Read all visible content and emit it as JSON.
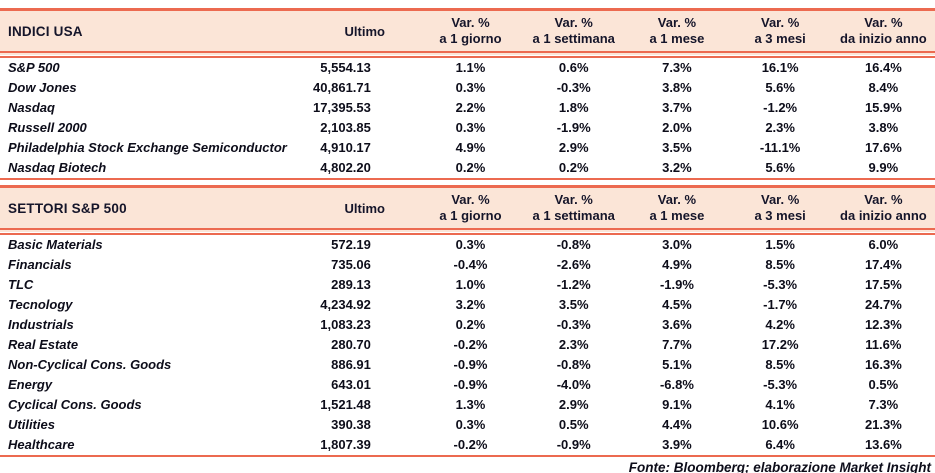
{
  "colors": {
    "header_bg": "#fbe5d7",
    "rule_line": "#ec6a50",
    "text": "#0d0d1a"
  },
  "columns": {
    "ultimo_label": "Ultimo",
    "var_label": "Var. %",
    "periods": [
      "a 1 giorno",
      "a 1 settimana",
      "a 1 mese",
      "a 3 mesi",
      "da inizio anno"
    ]
  },
  "tables": [
    {
      "title": "INDICI USA",
      "rows": [
        {
          "name": "S&P 500",
          "ultimo": "5,554.13",
          "vars": [
            "1.1%",
            "0.6%",
            "7.3%",
            "16.1%",
            "16.4%"
          ]
        },
        {
          "name": "Dow Jones",
          "ultimo": "40,861.71",
          "vars": [
            "0.3%",
            "-0.3%",
            "3.8%",
            "5.6%",
            "8.4%"
          ]
        },
        {
          "name": "Nasdaq",
          "ultimo": "17,395.53",
          "vars": [
            "2.2%",
            "1.8%",
            "3.7%",
            "-1.2%",
            "15.9%"
          ]
        },
        {
          "name": "Russell 2000",
          "ultimo": "2,103.85",
          "vars": [
            "0.3%",
            "-1.9%",
            "2.0%",
            "2.3%",
            "3.8%"
          ]
        },
        {
          "name": "Philadelphia Stock Exchange Semiconductor",
          "ultimo": "4,910.17",
          "vars": [
            "4.9%",
            "2.9%",
            "3.5%",
            "-11.1%",
            "17.6%"
          ]
        },
        {
          "name": "Nasdaq Biotech",
          "ultimo": "4,802.20",
          "vars": [
            "0.2%",
            "0.2%",
            "3.2%",
            "5.6%",
            "9.9%"
          ]
        }
      ]
    },
    {
      "title": "SETTORI S&P 500",
      "rows": [
        {
          "name": "Basic Materials",
          "ultimo": "572.19",
          "vars": [
            "0.3%",
            "-0.8%",
            "3.0%",
            "1.5%",
            "6.0%"
          ]
        },
        {
          "name": "Financials",
          "ultimo": "735.06",
          "vars": [
            "-0.4%",
            "-2.6%",
            "4.9%",
            "8.5%",
            "17.4%"
          ]
        },
        {
          "name": "TLC",
          "ultimo": "289.13",
          "vars": [
            "1.0%",
            "-1.2%",
            "-1.9%",
            "-5.3%",
            "17.5%"
          ]
        },
        {
          "name": "Tecnology",
          "ultimo": "4,234.92",
          "vars": [
            "3.2%",
            "3.5%",
            "4.5%",
            "-1.7%",
            "24.7%"
          ]
        },
        {
          "name": "Industrials",
          "ultimo": "1,083.23",
          "vars": [
            "0.2%",
            "-0.3%",
            "3.6%",
            "4.2%",
            "12.3%"
          ]
        },
        {
          "name": "Real Estate",
          "ultimo": "280.70",
          "vars": [
            "-0.2%",
            "2.3%",
            "7.7%",
            "17.2%",
            "11.6%"
          ]
        },
        {
          "name": "Non-Cyclical Cons. Goods",
          "ultimo": "886.91",
          "vars": [
            "-0.9%",
            "-0.8%",
            "5.1%",
            "8.5%",
            "16.3%"
          ]
        },
        {
          "name": "Energy",
          "ultimo": "643.01",
          "vars": [
            "-0.9%",
            "-4.0%",
            "-6.8%",
            "-5.3%",
            "0.5%"
          ]
        },
        {
          "name": "Cyclical Cons. Goods",
          "ultimo": "1,521.48",
          "vars": [
            "1.3%",
            "2.9%",
            "9.1%",
            "4.1%",
            "7.3%"
          ]
        },
        {
          "name": "Utilities",
          "ultimo": "390.38",
          "vars": [
            "0.3%",
            "0.5%",
            "4.4%",
            "10.6%",
            "21.3%"
          ]
        },
        {
          "name": "Healthcare",
          "ultimo": "1,807.39",
          "vars": [
            "-0.2%",
            "-0.9%",
            "3.9%",
            "6.4%",
            "13.6%"
          ]
        }
      ]
    }
  ],
  "footer": "Fonte: Bloomberg; elaborazione Market Insight"
}
